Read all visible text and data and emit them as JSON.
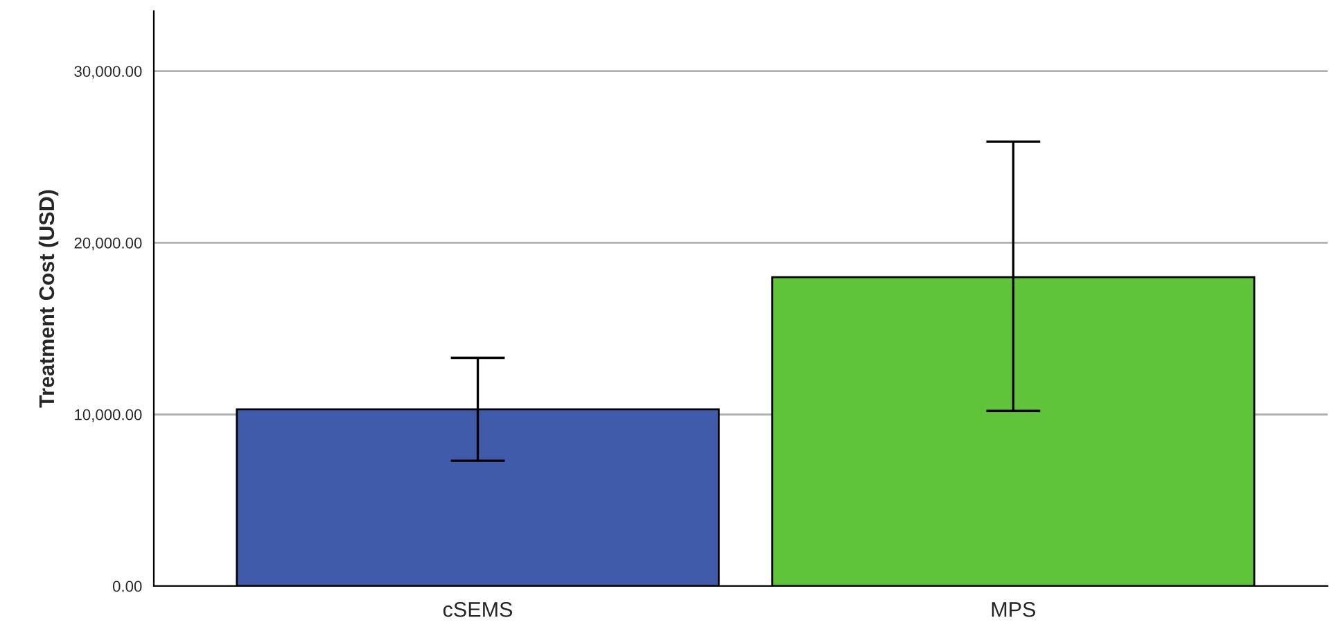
{
  "chart_data": {
    "type": "bar",
    "ylabel": "Treatment Cost (USD)",
    "categories": [
      "cSEMS",
      "MPS"
    ],
    "values": [
      10300,
      18000
    ],
    "colors": [
      "#3f5ba9",
      "#5fc43a"
    ],
    "errors": [
      [
        7300,
        13300
      ],
      [
        10200,
        25900
      ]
    ],
    "ylim": [
      0,
      33500
    ],
    "yticks": [
      {
        "value": 0,
        "label": "0.00"
      },
      {
        "value": 10000,
        "label": "10,000.00"
      },
      {
        "value": 20000,
        "label": "20,000.00"
      },
      {
        "value": 30000,
        "label": "30,000.00"
      }
    ],
    "grid": "y"
  }
}
